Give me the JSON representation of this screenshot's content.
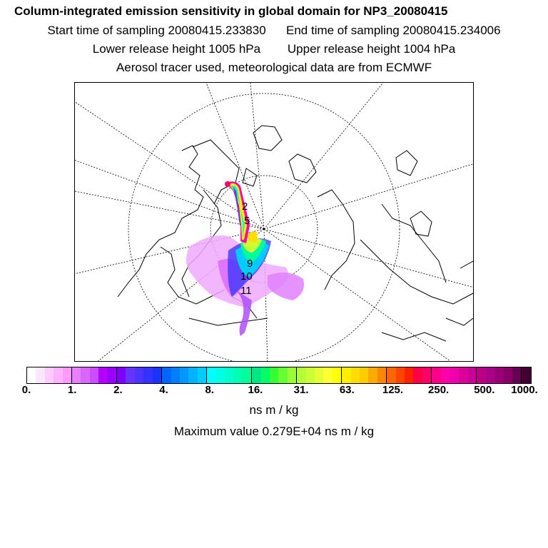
{
  "header": {
    "title": "Column-integrated emission sensitivity in global domain for NP3_20080415",
    "start_time": "Start time of sampling 20080415.233830",
    "end_time": "End time of sampling 20080415.234006",
    "lower_release": "Lower release height 1005 hPa",
    "upper_release": "Upper release height 1004 hPa",
    "tracer_info": "Aerosol tracer used, meteorological data are from ECMWF"
  },
  "map": {
    "projection": "polar stereographic (north pole)",
    "plume_labels": [
      "2",
      "5",
      "9",
      "10",
      "11"
    ]
  },
  "colorbar": {
    "ticks": [
      "0.",
      "1.",
      "2.",
      "4.",
      "8.",
      "16.",
      "31.",
      "63.",
      "125.",
      "250.",
      "500.",
      "1000."
    ],
    "colors": [
      "#ffffff",
      "#ffe6ff",
      "#ffccff",
      "#ffb3ff",
      "#ff99ff",
      "#e680ff",
      "#d966ff",
      "#cc4dff",
      "#b300ff",
      "#9900ff",
      "#8000ff",
      "#6633ff",
      "#4d33ff",
      "#3333ff",
      "#1a33ff",
      "#0066ff",
      "#0080ff",
      "#0099ff",
      "#00b3ff",
      "#00ccff",
      "#00ffff",
      "#00ffe6",
      "#00ffcc",
      "#00ffb3",
      "#00ff99",
      "#00e680",
      "#00ff66",
      "#33ff33",
      "#66ff33",
      "#99ff33",
      "#b3ff33",
      "#ccff33",
      "#e6ff33",
      "#ffff33",
      "#ffff00",
      "#ffee00",
      "#ffdd00",
      "#ffcc00",
      "#ffaa00",
      "#ff8800",
      "#ff6600",
      "#ff4400",
      "#ff2200",
      "#ff0044",
      "#ff0066",
      "#ff0088",
      "#ff00aa",
      "#ee00aa",
      "#dd0099",
      "#cc0099",
      "#bb0088",
      "#aa0088",
      "#990077",
      "#880066",
      "#660055",
      "#440033"
    ],
    "unit": "ns m / kg",
    "max_value_text": "Maximum value  0.279E+04 ns m / kg"
  }
}
